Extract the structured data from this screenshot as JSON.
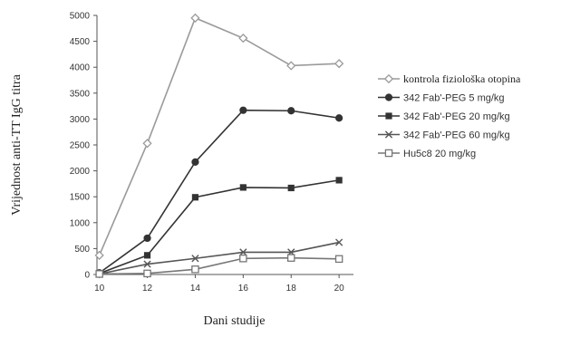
{
  "chart_data": {
    "type": "line",
    "xlabel": "Dani studije",
    "ylabel": "Vrijednost anti-TT IgG titra",
    "x": [
      10,
      12,
      14,
      16,
      18,
      20
    ],
    "ylim": [
      0,
      5000
    ],
    "yticks": [
      0,
      500,
      1000,
      1500,
      2000,
      2500,
      3000,
      3500,
      4000,
      4500,
      5000
    ],
    "grid": false,
    "legend_position": "right",
    "series": [
      {
        "name": "kontrola fiziološka otopina",
        "marker": "diamond-open",
        "color": "#9a9a9a",
        "values": [
          370,
          2530,
          4950,
          4560,
          4030,
          4070
        ]
      },
      {
        "name": "342 Fab'-PEG 5 mg/kg",
        "marker": "circle-filled",
        "color": "#333333",
        "values": [
          30,
          700,
          2170,
          3170,
          3160,
          3020
        ]
      },
      {
        "name": "342 Fab'-PEG 20 mg/kg",
        "marker": "square-filled",
        "color": "#333333",
        "values": [
          20,
          370,
          1490,
          1680,
          1670,
          1820
        ]
      },
      {
        "name": "342 Fab'-PEG 60 mg/kg",
        "marker": "x",
        "color": "#555555",
        "values": [
          10,
          200,
          310,
          430,
          430,
          620
        ]
      },
      {
        "name": "Hu5c8 20 mg/kg",
        "marker": "square-open",
        "color": "#777777",
        "values": [
          10,
          20,
          100,
          310,
          320,
          300
        ]
      }
    ]
  }
}
